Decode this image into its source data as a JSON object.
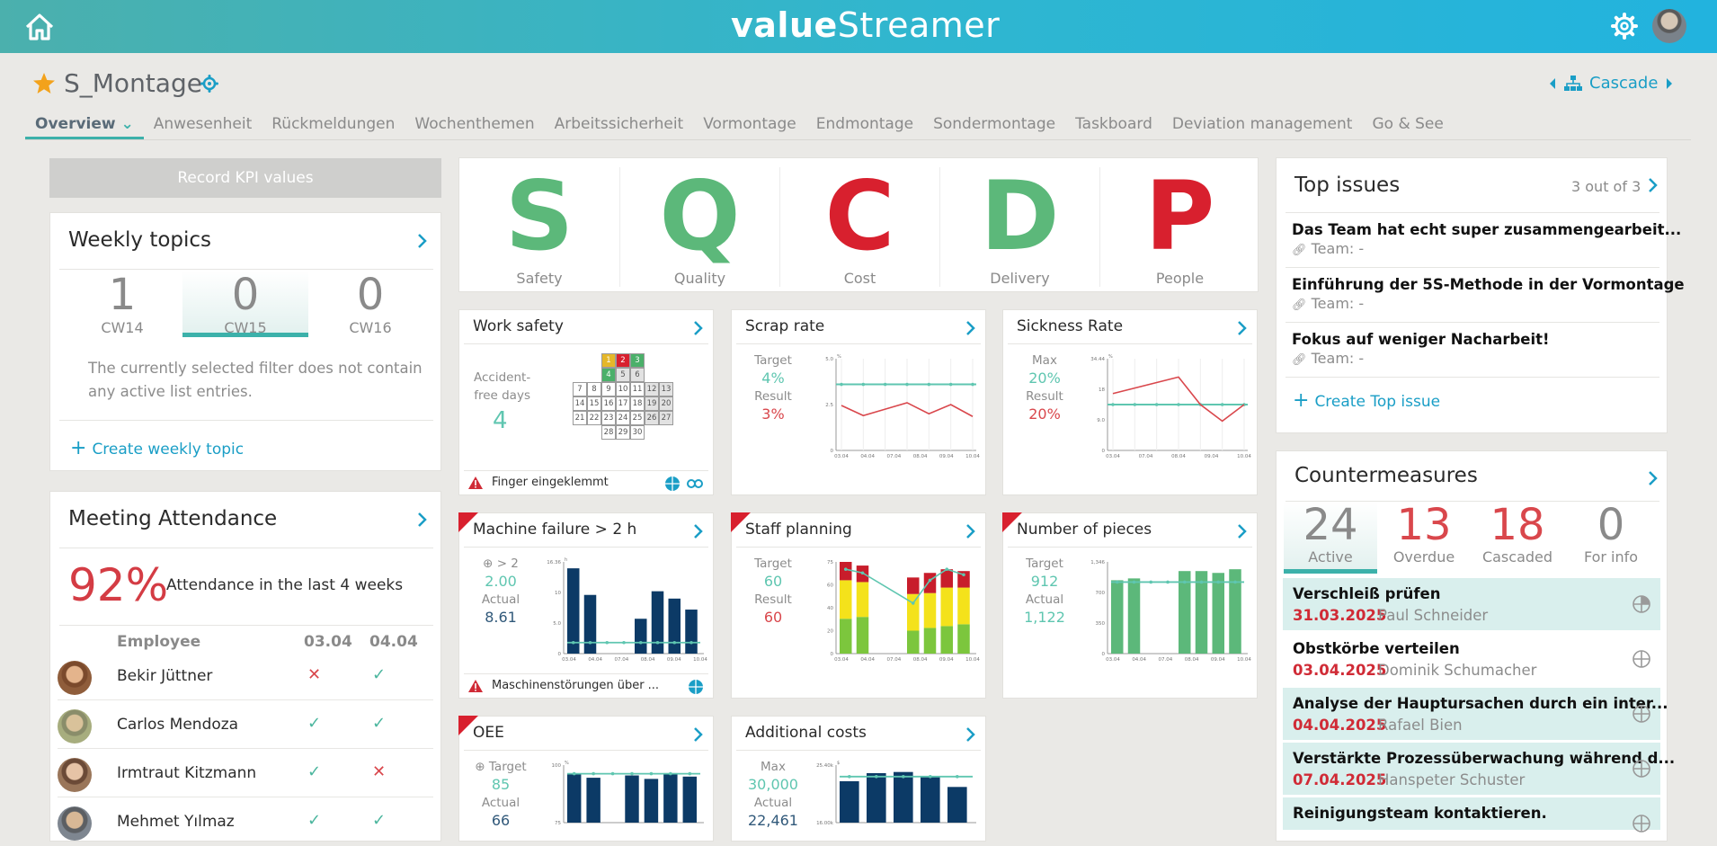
{
  "header": {
    "logo_value": "value",
    "logo_streamer": "Streamer"
  },
  "page": {
    "title": "S_Montage",
    "cascade_label": "Cascade"
  },
  "tabs": [
    {
      "label": "Overview"
    },
    {
      "label": "Anwesenheit"
    },
    {
      "label": "Rückmeldungen"
    },
    {
      "label": "Wochenthemen"
    },
    {
      "label": "Arbeitssicherheit"
    },
    {
      "label": "Vormontage"
    },
    {
      "label": "Endmontage"
    },
    {
      "label": "Sondermontage"
    },
    {
      "label": "Taskboard"
    },
    {
      "label": "Deviation management"
    },
    {
      "label": "Go & See"
    }
  ],
  "record_kpi": "Record KPI values",
  "weekly_topics": {
    "title": "Weekly topics",
    "weeks": [
      {
        "count": "1",
        "label": "CW14"
      },
      {
        "count": "0",
        "label": "CW15"
      },
      {
        "count": "0",
        "label": "CW16"
      }
    ],
    "empty_text_1": "The currently selected filter does not contain",
    "empty_text_2": "any active list entries.",
    "create": "Create weekly topic"
  },
  "attendance": {
    "title": "Meeting Attendance",
    "percent": "92%",
    "subtitle": "Attendance in the last 4 weeks",
    "col_employee": "Employee",
    "col_d1": "03.04",
    "col_d2": "04.04",
    "rows": [
      {
        "name": "Bekir Jüttner",
        "d1": "✕",
        "d2": "✓"
      },
      {
        "name": "Carlos Mendoza",
        "d1": "✓",
        "d2": "✓"
      },
      {
        "name": "Irmtraut Kitzmann",
        "d1": "✓",
        "d2": "✕"
      },
      {
        "name": "Mehmet Yılmaz",
        "d1": "✓",
        "d2": "✓"
      }
    ]
  },
  "sqcdp": [
    {
      "letter": "S",
      "label": "Safety",
      "color": "#5cb87a"
    },
    {
      "letter": "Q",
      "label": "Quality",
      "color": "#5cb87a"
    },
    {
      "letter": "C",
      "label": "Cost",
      "color": "#d8202e"
    },
    {
      "letter": "D",
      "label": "Delivery",
      "color": "#5cb87a"
    },
    {
      "letter": "P",
      "label": "People",
      "color": "#d8202e"
    }
  ],
  "work_safety": {
    "title": "Work safety",
    "label_1": "Accident-",
    "label_2": "free days",
    "value": "4",
    "footer": "Finger eingeklemmt",
    "calendar": [
      [
        "",
        "",
        "1",
        "2",
        "3",
        ""
      ],
      [
        "",
        "",
        "4",
        "5",
        "6",
        ""
      ],
      [
        "7",
        "8",
        "9",
        "10",
        "11",
        "12",
        "13"
      ],
      [
        "14",
        "15",
        "16",
        "17",
        "18",
        "19",
        "20"
      ],
      [
        "21",
        "22",
        "23",
        "24",
        "25",
        "26",
        "27"
      ],
      [
        "",
        "",
        "28",
        "29",
        "30",
        ""
      ]
    ]
  },
  "scrap_rate": {
    "title": "Scrap rate",
    "k1": "Target",
    "v1": "4%",
    "k2": "Result",
    "v2": "3%",
    "y_ticks": [
      "5.0",
      "2.5",
      "0"
    ],
    "y_unit": "%",
    "x_ticks": [
      "03.04",
      "04.04",
      "07.04",
      "08.04",
      "09.04",
      "10.04"
    ]
  },
  "sickness_rate": {
    "title": "Sickness Rate",
    "k1": "Max",
    "v1": "20%",
    "k2": "Result",
    "v2": "20%",
    "y_ticks": [
      "34.44",
      "18",
      "9.0",
      "0"
    ],
    "y_unit": "%",
    "x_ticks": [
      "03.04",
      "07.04",
      "08.04",
      "09.04",
      "10.04"
    ]
  },
  "machine_failure": {
    "title": "Machine failure > 2 h",
    "k1": "> 2",
    "v1": "2.00",
    "k2": "Actual",
    "v2": "8.61",
    "y_ticks": [
      "16.36",
      "10",
      "5.0",
      "0"
    ],
    "y_unit": "h",
    "x_ticks": [
      "03.04",
      "04.04",
      "07.04",
      "08.04",
      "09.04",
      "10.04"
    ],
    "footer": "Maschinenstörungen über ..."
  },
  "staff_planning": {
    "title": "Staff planning",
    "k1": "Target",
    "v1": "60",
    "k2": "Result",
    "v2": "60",
    "y_ticks": [
      "75",
      "60",
      "40",
      "20",
      "0"
    ],
    "x_ticks": [
      "03.04",
      "04.04",
      "07.04",
      "08.04",
      "09.04",
      "10.04"
    ]
  },
  "number_of_pieces": {
    "title": "Number of pieces",
    "k1": "Target",
    "v1": "912",
    "k2": "Actual",
    "v2": "1,122",
    "y_ticks": [
      "1,346",
      "700",
      "350",
      "0"
    ],
    "x_ticks": [
      "03.04",
      "04.04",
      "07.04",
      "08.04",
      "09.04",
      "10.04"
    ]
  },
  "oee": {
    "title": "OEE",
    "k1": "Target",
    "v1": "85",
    "k2": "Actual",
    "v2": "66",
    "y_ticks": [
      "100",
      "75"
    ],
    "y_unit": "%"
  },
  "additional_costs": {
    "title": "Additional costs",
    "k1": "Max",
    "v1": "30,000",
    "k2": "Actual",
    "v2": "22,461",
    "y_ticks": [
      "25.40k",
      "16.00k"
    ],
    "y_unit": "$"
  },
  "top_issues": {
    "title": "Top issues",
    "count": "3 out of 3",
    "items": [
      {
        "title": "Das Team hat echt super zusammengearbeit...",
        "sub": "Team: -"
      },
      {
        "title": "Einführung der 5S-Methode in der Vormontage",
        "sub": "Team: -"
      },
      {
        "title": "Fokus auf weniger Nacharbeit!",
        "sub": "Team: -"
      }
    ],
    "create": "Create Top issue"
  },
  "countermeasures": {
    "title": "Countermeasures",
    "stats": [
      {
        "n": "24",
        "l": "Active",
        "color": "#8a8a8a"
      },
      {
        "n": "13",
        "l": "Overdue",
        "color": "#d9474c"
      },
      {
        "n": "18",
        "l": "Cascaded",
        "color": "#d9474c"
      },
      {
        "n": "0",
        "l": "For info",
        "color": "#8a8a8a"
      }
    ],
    "items": [
      {
        "title": "Verschleiß prüfen",
        "date": "31.03.2025",
        "person": "Paul Schneider"
      },
      {
        "title": "Obstkörbe verteilen",
        "date": "03.04.2025",
        "person": "Dominik Schumacher"
      },
      {
        "title": "Analyse der Hauptursachen durch ein inter...",
        "date": "04.04.2025",
        "person": "Rafael Bien"
      },
      {
        "title": "Verstärkte Prozessüberwachung während d...",
        "date": "07.04.2025",
        "person": "Hanspeter Schuster"
      },
      {
        "title": "Reinigungsteam kontaktieren.",
        "date": "",
        "person": ""
      }
    ]
  }
}
